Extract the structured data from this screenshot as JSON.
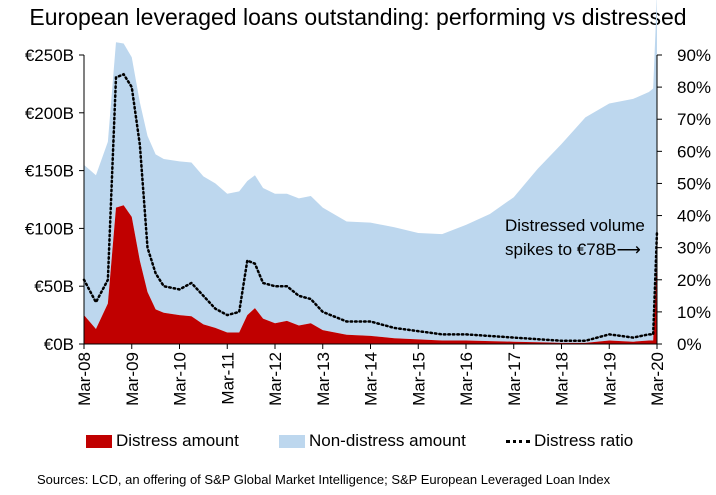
{
  "chart_data": {
    "type": "area",
    "title": "European leveraged loans outstanding: performing vs distressed",
    "x_ticks": [
      "Mar-08",
      "Mar-09",
      "Mar-10",
      "Mar-11",
      "Mar-12",
      "Mar-13",
      "Mar-14",
      "Mar-15",
      "Mar-16",
      "Mar-17",
      "Mar-18",
      "Mar-19",
      "Mar-20"
    ],
    "left_axis": {
      "ticks": [
        "€0B",
        "€50B",
        "€100B",
        "€150B",
        "€200B",
        "€250B"
      ],
      "ylim": [
        0,
        250
      ]
    },
    "right_axis": {
      "ticks": [
        "0%",
        "10%",
        "20%",
        "30%",
        "40%",
        "50%",
        "60%",
        "70%",
        "80%",
        "90%"
      ],
      "ylim": [
        0,
        90
      ]
    },
    "x": [
      2008.0,
      2008.25,
      2008.5,
      2008.67,
      2008.83,
      2009.0,
      2009.17,
      2009.33,
      2009.5,
      2009.67,
      2010.0,
      2010.25,
      2010.5,
      2010.75,
      2011.0,
      2011.25,
      2011.42,
      2011.58,
      2011.75,
      2012.0,
      2012.25,
      2012.5,
      2012.75,
      2013.0,
      2013.5,
      2014.0,
      2014.5,
      2015.0,
      2015.5,
      2016.0,
      2016.5,
      2017.0,
      2017.5,
      2018.0,
      2018.5,
      2019.0,
      2019.5,
      2019.83,
      2019.92,
      2020.0
    ],
    "series": [
      {
        "name": "Distress amount",
        "axis": "left",
        "color": "#c00000",
        "values": [
          25,
          13,
          35,
          118,
          120,
          110,
          72,
          45,
          30,
          27,
          25,
          24,
          17,
          14,
          10,
          10,
          25,
          31,
          22,
          18,
          20,
          16,
          18,
          12,
          8,
          7,
          5,
          4,
          3,
          3,
          2.5,
          2,
          1.5,
          1,
          1,
          3,
          2,
          3,
          3,
          78
        ]
      },
      {
        "name": "Non-distress amount",
        "axis": "left",
        "color": "#bdd7ee",
        "values": [
          130,
          133,
          140,
          143,
          140,
          138,
          137,
          135,
          134,
          133,
          133,
          133,
          128,
          125,
          120,
          122,
          116,
          115,
          113,
          112,
          110,
          110,
          110,
          106,
          98,
          98,
          96,
          92,
          92,
          100,
          110,
          125,
          150,
          172,
          195,
          205,
          210,
          215,
          218,
          225
        ]
      },
      {
        "name": "Distress ratio",
        "axis": "right",
        "color": "#000000",
        "values": [
          20,
          13,
          20,
          83,
          84,
          80,
          62,
          30,
          22,
          18,
          17,
          19,
          15,
          11,
          9,
          10,
          26,
          25,
          19,
          18,
          18,
          15,
          14,
          10,
          7,
          7,
          5,
          4,
          3,
          3,
          2.5,
          2,
          1.5,
          1,
          1,
          3,
          2,
          3,
          3,
          35
        ]
      }
    ],
    "annotation": [
      "Distressed volume",
      "spikes to €78B⟶"
    ],
    "legend_position": "bottom",
    "grid": false
  },
  "legend": {
    "distress": "Distress amount",
    "non_distress": "Non-distress amount",
    "ratio": "Distress ratio"
  },
  "source": "Sources: LCD, an offering of S&P Global Market Intelligence; S&P European Leveraged Loan Index"
}
